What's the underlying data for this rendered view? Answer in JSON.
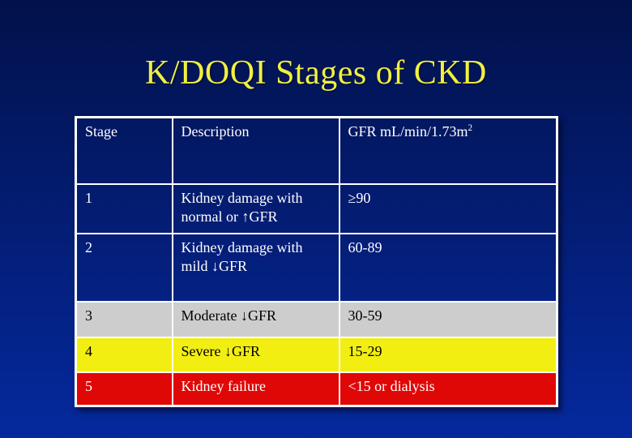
{
  "slide": {
    "title": "K/DOQI Stages of CKD"
  },
  "table": {
    "headers": {
      "stage": "Stage",
      "description": "Description",
      "gfr_base": "GFR mL/min/1.73m",
      "gfr_sup": "2"
    },
    "rows": [
      {
        "stage": "1",
        "description": "Kidney damage with normal or ↑GFR",
        "gfr": "≥90",
        "theme": "navy"
      },
      {
        "stage": "2",
        "description": "Kidney damage with mild ↓GFR",
        "gfr": "60-89",
        "theme": "navy"
      },
      {
        "stage": "3",
        "description": "Moderate ↓GFR",
        "gfr": "30-59",
        "theme": "gray"
      },
      {
        "stage": "4",
        "description": "Severe ↓GFR",
        "gfr": "15-29",
        "theme": "yellow"
      },
      {
        "stage": "5",
        "description": "Kidney failure",
        "gfr": "<15 or dialysis",
        "theme": "red"
      }
    ]
  },
  "colors": {
    "background_top": "#02114A",
    "background_bottom": "#05299E",
    "title_yellow": "#F0F041",
    "row_gray": "#CDCDCD",
    "row_yellow": "#F2EE12",
    "row_red": "#E00707",
    "table_border": "#FFFFFF",
    "text_light": "#FFFFFF",
    "text_dark": "#000000"
  }
}
